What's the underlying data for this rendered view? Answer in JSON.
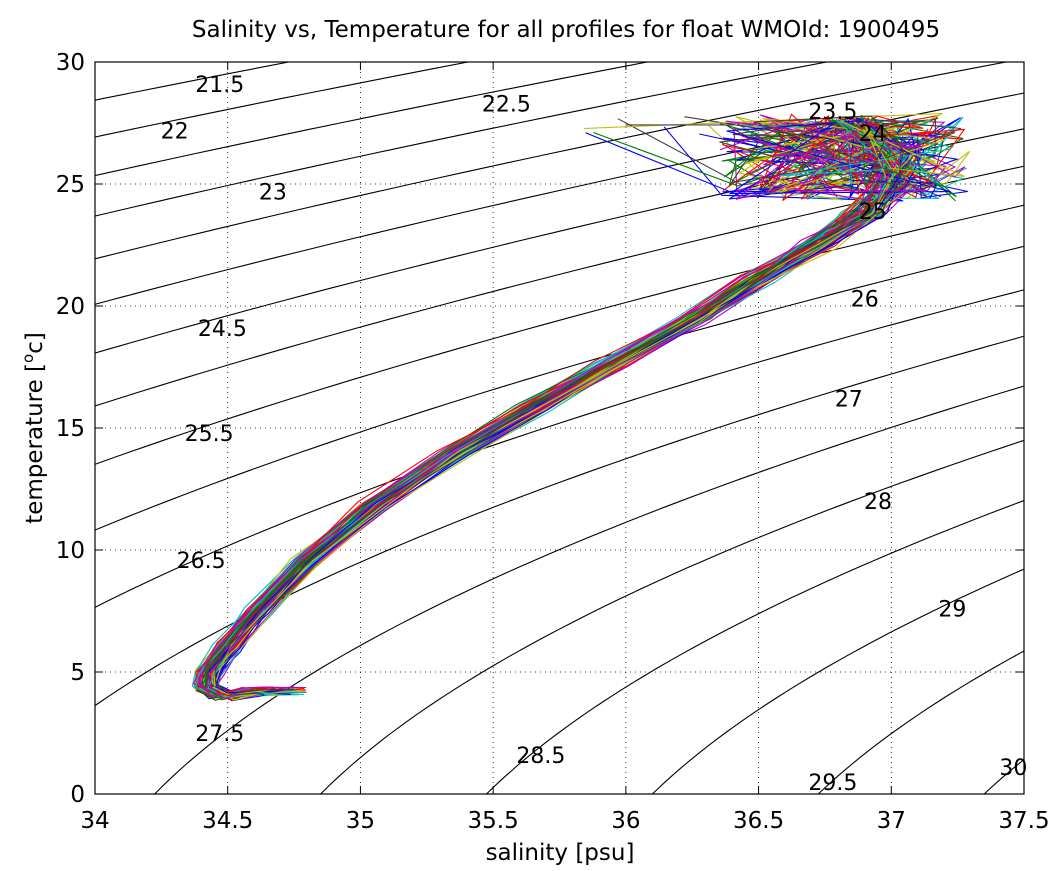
{
  "chart_data": {
    "type": "line",
    "title": "Salinity vs, Temperature for all profiles for float WMOId: 1900495",
    "xlabel": "salinity [psu]",
    "ylabel_main": "temperature [",
    "ylabel_super": "o",
    "ylabel_tail": "c]",
    "xlim": [
      34,
      37.5
    ],
    "ylim": [
      0,
      30
    ],
    "xticks": [
      34,
      34.5,
      35,
      35.5,
      36,
      36.5,
      37,
      37.5
    ],
    "yticks": [
      0,
      5,
      10,
      15,
      20,
      25,
      30
    ],
    "xtick_labels": [
      "34",
      "34.5",
      "35",
      "35.5",
      "36",
      "36.5",
      "37",
      "37.5"
    ],
    "ytick_labels": [
      "0",
      "5",
      "10",
      "15",
      "20",
      "25",
      "30"
    ],
    "grid": true,
    "contour_labels": [
      {
        "text": "21.5",
        "s": 34.47,
        "t": 29.1
      },
      {
        "text": "22",
        "s": 34.3,
        "t": 27.2
      },
      {
        "text": "22.5",
        "s": 35.55,
        "t": 28.3
      },
      {
        "text": "23",
        "s": 34.67,
        "t": 24.7
      },
      {
        "text": "23.5",
        "s": 36.78,
        "t": 28.0
      },
      {
        "text": "24",
        "s": 36.93,
        "t": 27.1
      },
      {
        "text": "24.5",
        "s": 34.48,
        "t": 19.1
      },
      {
        "text": "25",
        "s": 36.93,
        "t": 23.9
      },
      {
        "text": "25.5",
        "s": 34.43,
        "t": 14.8
      },
      {
        "text": "26",
        "s": 36.9,
        "t": 20.3
      },
      {
        "text": "26.5",
        "s": 34.4,
        "t": 9.6
      },
      {
        "text": "27",
        "s": 36.84,
        "t": 16.2
      },
      {
        "text": "27.5",
        "s": 34.47,
        "t": 2.5
      },
      {
        "text": "28",
        "s": 36.95,
        "t": 12.0
      },
      {
        "text": "28.5",
        "s": 35.68,
        "t": 1.6
      },
      {
        "text": "29",
        "s": 37.23,
        "t": 7.6
      },
      {
        "text": "29.5",
        "s": 36.78,
        "t": 0.5
      },
      {
        "text": "30",
        "s": 37.46,
        "t": 1.1
      }
    ],
    "series_colors": [
      "#0000ff",
      "#008000",
      "#ff0000",
      "#00bfbf",
      "#bf00bf",
      "#bfbf00",
      "#404040"
    ],
    "profile_count": 70,
    "profile_path": {
      "s": [
        34.75,
        34.6,
        34.48,
        34.42,
        34.43,
        34.5,
        34.62,
        34.8,
        35.05,
        35.35,
        35.65,
        35.95,
        36.25,
        36.5,
        36.72,
        36.9,
        37.0,
        37.02,
        36.85
      ],
      "t": [
        4.2,
        4.2,
        4.0,
        4.4,
        5.0,
        6.0,
        7.5,
        9.5,
        11.8,
        13.9,
        15.8,
        17.6,
        19.4,
        21.1,
        22.5,
        23.8,
        25.0,
        26.2,
        27.6
      ]
    }
  }
}
